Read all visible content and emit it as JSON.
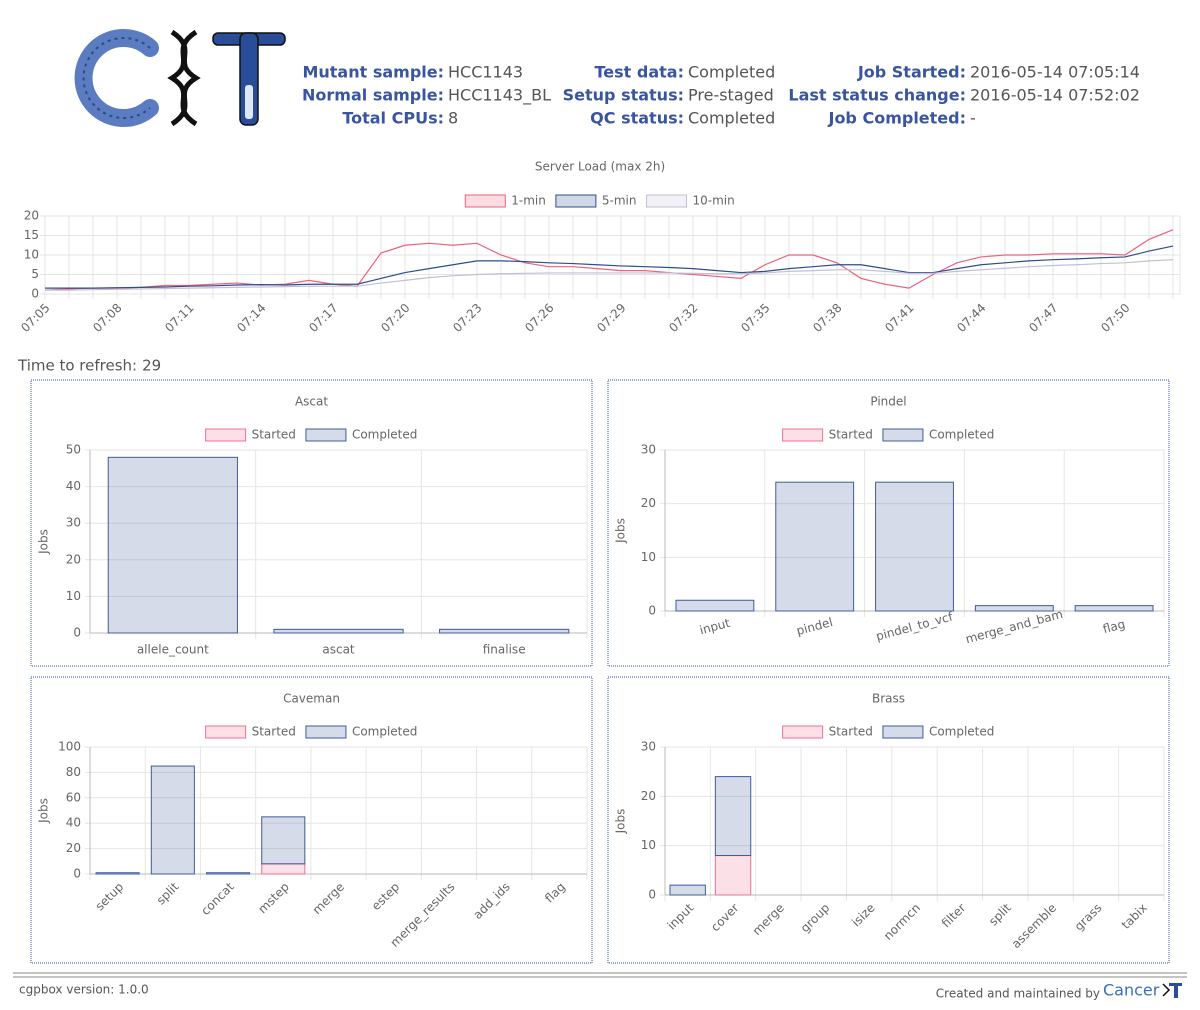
{
  "header": {
    "fields": [
      {
        "label": "Mutant sample:",
        "value": "HCC1143"
      },
      {
        "label": "Normal sample:",
        "value": "HCC1143_BL"
      },
      {
        "label": "Total CPUs:",
        "value": 8
      },
      {
        "label": "Test data:",
        "value": "Completed"
      },
      {
        "label": "Setup status:",
        "value": "Pre-staged"
      },
      {
        "label": "QC status:",
        "value": "Completed"
      },
      {
        "label": "Job Started:",
        "value": "2016-05-14 07:05:14"
      },
      {
        "label": "Last status change:",
        "value": "2016-05-14 07:52:02"
      },
      {
        "label": "Job Completed:",
        "value": "-"
      }
    ]
  },
  "refresh": {
    "label": "Time to refresh:",
    "value": 29
  },
  "chart_data": [
    {
      "type": "line",
      "title": "Server Load (max 2h)",
      "categories": [
        "07:05",
        null,
        null,
        "07:08",
        null,
        null,
        "07:11",
        null,
        null,
        "07:14",
        null,
        null,
        "07:17",
        null,
        null,
        "07:20",
        null,
        null,
        "07:23",
        null,
        null,
        "07:26",
        null,
        null,
        "07:29",
        null,
        null,
        "07:32",
        null,
        null,
        "07:35",
        null,
        null,
        "07:38",
        null,
        null,
        "07:41",
        null,
        null,
        "07:44",
        null,
        null,
        "07:47",
        null,
        null,
        "07:50",
        null,
        null
      ],
      "ylim": [
        0,
        20
      ],
      "yticks": [
        0,
        5,
        10,
        15,
        20
      ],
      "grid": true,
      "series": [
        {
          "name": "1-min",
          "color": "#f0607f",
          "values": [
            1,
            1.3,
            1.5,
            1.5,
            1.7,
            2.2,
            2.2,
            2.5,
            2.8,
            2.3,
            2.5,
            3.5,
            2.5,
            2,
            10.5,
            12.5,
            13,
            12.5,
            13,
            10,
            8,
            7,
            7,
            6.5,
            6,
            6,
            5.5,
            5,
            4.5,
            4,
            7.5,
            10,
            10,
            8,
            4,
            2.5,
            1.5,
            5,
            8,
            9.5,
            10,
            10,
            10.3,
            10.3,
            10.3,
            10,
            14,
            16.5
          ]
        },
        {
          "name": "5-min",
          "color": "#2f4d8a",
          "values": [
            1.5,
            1.5,
            1.5,
            1.6,
            1.7,
            1.8,
            2,
            2.1,
            2.3,
            2.4,
            2.3,
            2.5,
            2.5,
            2.5,
            4,
            5.5,
            6.5,
            7.5,
            8.5,
            8.5,
            8.3,
            8,
            7.8,
            7.5,
            7.2,
            7,
            6.8,
            6.5,
            6,
            5.5,
            5.8,
            6.5,
            7,
            7.5,
            7.5,
            6.5,
            5.5,
            5.5,
            6.5,
            7.5,
            8,
            8.5,
            8.8,
            9,
            9.3,
            9.5,
            11,
            12.3
          ]
        },
        {
          "name": "10-min",
          "color": "#c0c0d8",
          "values": [
            1,
            1,
            1.1,
            1.2,
            1.3,
            1.4,
            1.5,
            1.6,
            1.7,
            1.8,
            1.9,
            2,
            2,
            2,
            2.8,
            3.5,
            4.2,
            4.7,
            5,
            5.2,
            5.3,
            5.4,
            5.4,
            5.4,
            5.4,
            5.4,
            5.4,
            5.3,
            5.2,
            5.2,
            5.4,
            5.8,
            6,
            6.2,
            6.2,
            5.8,
            5.3,
            5.3,
            5.8,
            6.2,
            6.6,
            7,
            7.3,
            7.5,
            7.8,
            8,
            8.5,
            8.8
          ]
        }
      ]
    },
    {
      "type": "stacked_bar",
      "title": "Ascat",
      "ylabel": "Jobs",
      "categories": [
        "allele_count",
        "ascat",
        "finalise"
      ],
      "ylim": [
        0,
        50
      ],
      "yticks": [
        0,
        10,
        20,
        30,
        40,
        50
      ],
      "grid": true,
      "series": [
        {
          "name": "Started",
          "color": "#f07090",
          "values": [
            0,
            0,
            0
          ]
        },
        {
          "name": "Completed",
          "color": "#3e5c9a",
          "values": [
            48,
            1,
            1
          ]
        }
      ]
    },
    {
      "type": "stacked_bar",
      "title": "Pindel",
      "ylabel": "Jobs",
      "categories": [
        "input",
        "pindel",
        "pindel_to_vcf",
        "merge_and_bam",
        "flag"
      ],
      "ylim": [
        0,
        30
      ],
      "yticks": [
        0,
        10,
        20,
        30
      ],
      "grid": true,
      "series": [
        {
          "name": "Started",
          "color": "#f07090",
          "values": [
            0,
            0,
            0,
            0,
            0
          ]
        },
        {
          "name": "Completed",
          "color": "#3e5c9a",
          "values": [
            2,
            24,
            24,
            1,
            1
          ]
        }
      ]
    },
    {
      "type": "stacked_bar",
      "title": "Caveman",
      "ylabel": "Jobs",
      "categories": [
        "setup",
        "split",
        "concat",
        "mstep",
        "merge",
        "estep",
        "merge_results",
        "add_ids",
        "flag"
      ],
      "ylim": [
        0,
        100
      ],
      "yticks": [
        0,
        20,
        40,
        60,
        80,
        100
      ],
      "grid": true,
      "series": [
        {
          "name": "Started",
          "color": "#f07090",
          "values": [
            0,
            0,
            0,
            8,
            0,
            0,
            0,
            0,
            0
          ]
        },
        {
          "name": "Completed",
          "color": "#3e5c9a",
          "values": [
            1,
            85,
            1,
            37,
            0,
            0,
            0,
            0,
            0
          ]
        }
      ]
    },
    {
      "type": "stacked_bar",
      "title": "Brass",
      "ylabel": "Jobs",
      "categories": [
        "input",
        "cover",
        "merge",
        "group",
        "isize",
        "normcn",
        "filter",
        "split",
        "assemble",
        "grass",
        "tabix"
      ],
      "ylim": [
        0,
        30
      ],
      "yticks": [
        0,
        10,
        20,
        30
      ],
      "grid": true,
      "series": [
        {
          "name": "Started",
          "color": "#f07090",
          "values": [
            0,
            8,
            0,
            0,
            0,
            0,
            0,
            0,
            0,
            0,
            0
          ]
        },
        {
          "name": "Completed",
          "color": "#3e5c9a",
          "values": [
            2,
            16,
            0,
            0,
            0,
            0,
            0,
            0,
            0,
            0,
            0
          ]
        }
      ]
    }
  ],
  "footer": {
    "version": "cgpbox version: 1.0.0",
    "credit": "Created and maintained by",
    "logo": "Cancer"
  }
}
